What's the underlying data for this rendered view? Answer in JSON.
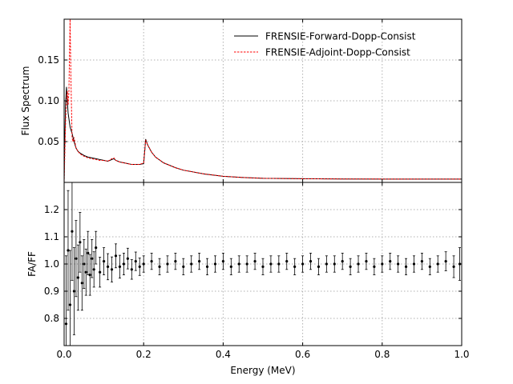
{
  "chart_data": [
    {
      "type": "line",
      "panel": "top",
      "xlabel": "",
      "ylabel": "Flux Spectrum",
      "xlim": [
        0.0,
        1.0
      ],
      "ylim": [
        0.0,
        0.2
      ],
      "yticks": [
        0.05,
        0.1,
        0.15
      ],
      "ytick_labels": [
        "0.05",
        "0.10",
        "0.15"
      ],
      "grid": true,
      "legend_position": "top-right",
      "series": [
        {
          "name": "FRENSIE-Forward-Dopp-Consist",
          "color": "#000000",
          "style": "solid",
          "x": [
            0.0,
            0.002,
            0.004,
            0.006,
            0.008,
            0.01,
            0.015,
            0.02,
            0.025,
            0.03,
            0.035,
            0.04,
            0.05,
            0.06,
            0.07,
            0.08,
            0.09,
            0.1,
            0.11,
            0.12,
            0.125,
            0.13,
            0.14,
            0.15,
            0.16,
            0.17,
            0.18,
            0.19,
            0.2,
            0.203,
            0.205,
            0.21,
            0.22,
            0.23,
            0.25,
            0.28,
            0.3,
            0.35,
            0.4,
            0.45,
            0.5,
            0.6,
            0.7,
            0.8,
            0.9,
            1.0
          ],
          "y": [
            0.0,
            0.06,
            0.1,
            0.117,
            0.1,
            0.085,
            0.068,
            0.06,
            0.05,
            0.042,
            0.038,
            0.036,
            0.033,
            0.031,
            0.03,
            0.029,
            0.028,
            0.027,
            0.026,
            0.028,
            0.029,
            0.027,
            0.025,
            0.024,
            0.023,
            0.022,
            0.022,
            0.022,
            0.023,
            0.04,
            0.053,
            0.046,
            0.037,
            0.031,
            0.024,
            0.018,
            0.015,
            0.0105,
            0.0075,
            0.006,
            0.005,
            0.0045,
            0.0042,
            0.0041,
            0.004,
            0.004
          ]
        },
        {
          "name": "FRENSIE-Adjoint-Dopp-Consist",
          "color": "#ff0000",
          "style": "dashed",
          "x": [
            0.0,
            0.002,
            0.004,
            0.006,
            0.008,
            0.01,
            0.012,
            0.015,
            0.017,
            0.02,
            0.022,
            0.025,
            0.03,
            0.035,
            0.04,
            0.05,
            0.06,
            0.07,
            0.08,
            0.09,
            0.1,
            0.11,
            0.12,
            0.125,
            0.13,
            0.14,
            0.15,
            0.16,
            0.17,
            0.18,
            0.19,
            0.2,
            0.203,
            0.205,
            0.21,
            0.22,
            0.23,
            0.25,
            0.28,
            0.3,
            0.35,
            0.4,
            0.45,
            0.5,
            0.6,
            0.7,
            0.8,
            0.9,
            1.0
          ],
          "y": [
            0.0,
            0.04,
            0.08,
            0.1,
            0.112,
            0.095,
            0.11,
            0.2,
            0.13,
            0.055,
            0.05,
            0.055,
            0.042,
            0.038,
            0.035,
            0.032,
            0.03,
            0.029,
            0.028,
            0.027,
            0.027,
            0.026,
            0.029,
            0.03,
            0.027,
            0.025,
            0.024,
            0.023,
            0.022,
            0.022,
            0.022,
            0.024,
            0.04,
            0.052,
            0.046,
            0.037,
            0.031,
            0.024,
            0.018,
            0.015,
            0.0105,
            0.0075,
            0.006,
            0.005,
            0.0045,
            0.0042,
            0.0041,
            0.004,
            0.004
          ]
        }
      ]
    },
    {
      "type": "scatter",
      "panel": "bottom",
      "xlabel": "Energy (MeV)",
      "ylabel": "FA/FF",
      "xlim": [
        0.0,
        1.0
      ],
      "ylim": [
        0.7,
        1.3
      ],
      "xticks": [
        0.0,
        0.2,
        0.4,
        0.6,
        0.8,
        1.0
      ],
      "xtick_labels": [
        "0.0",
        "0.2",
        "0.4",
        "0.6",
        "0.8",
        "1.0"
      ],
      "yticks": [
        0.8,
        0.9,
        1.0,
        1.1,
        1.2
      ],
      "ytick_labels": [
        "0.8",
        "0.9",
        "1.0",
        "1.1",
        "1.2"
      ],
      "grid": true,
      "series": [
        {
          "name": "",
          "color": "#000000",
          "marker": "dot-with-errorbars",
          "x": [
            0.005,
            0.01,
            0.015,
            0.02,
            0.025,
            0.03,
            0.035,
            0.04,
            0.045,
            0.05,
            0.055,
            0.06,
            0.065,
            0.07,
            0.075,
            0.08,
            0.09,
            0.1,
            0.11,
            0.12,
            0.13,
            0.14,
            0.15,
            0.16,
            0.17,
            0.18,
            0.19,
            0.2,
            0.22,
            0.24,
            0.26,
            0.28,
            0.3,
            0.32,
            0.34,
            0.36,
            0.38,
            0.4,
            0.42,
            0.44,
            0.46,
            0.48,
            0.5,
            0.52,
            0.54,
            0.56,
            0.58,
            0.6,
            0.62,
            0.64,
            0.66,
            0.68,
            0.7,
            0.72,
            0.74,
            0.76,
            0.78,
            0.8,
            0.82,
            0.84,
            0.86,
            0.88,
            0.9,
            0.92,
            0.94,
            0.96,
            0.98,
            0.995
          ],
          "y": [
            0.78,
            1.05,
            0.85,
            1.12,
            0.9,
            1.02,
            0.95,
            1.08,
            0.93,
            1.0,
            0.97,
            1.04,
            0.96,
            1.02,
            0.98,
            1.06,
            0.97,
            1.01,
            0.99,
            0.98,
            1.03,
            0.99,
            1.0,
            1.02,
            0.98,
            1.01,
            0.99,
            1.0,
            1.01,
            0.99,
            1.0,
            1.01,
            0.99,
            1.0,
            1.01,
            0.99,
            1.0,
            1.01,
            0.99,
            1.0,
            1.0,
            1.01,
            0.99,
            1.0,
            1.0,
            1.01,
            0.99,
            1.0,
            1.01,
            0.99,
            1.0,
            1.0,
            1.01,
            0.99,
            1.0,
            1.01,
            0.99,
            1.0,
            1.01,
            1.0,
            0.99,
            1.0,
            1.01,
            0.99,
            1.0,
            1.01,
            0.99,
            1.0
          ],
          "yerr": [
            0.25,
            0.22,
            0.2,
            0.18,
            0.16,
            0.14,
            0.12,
            0.11,
            0.1,
            0.09,
            0.085,
            0.08,
            0.075,
            0.07,
            0.065,
            0.06,
            0.055,
            0.05,
            0.048,
            0.046,
            0.044,
            0.042,
            0.04,
            0.038,
            0.036,
            0.034,
            0.032,
            0.03,
            0.03,
            0.03,
            0.03,
            0.03,
            0.03,
            0.03,
            0.03,
            0.03,
            0.03,
            0.03,
            0.03,
            0.03,
            0.03,
            0.03,
            0.03,
            0.03,
            0.03,
            0.03,
            0.03,
            0.03,
            0.03,
            0.03,
            0.03,
            0.03,
            0.03,
            0.03,
            0.03,
            0.03,
            0.03,
            0.03,
            0.03,
            0.03,
            0.03,
            0.03,
            0.03,
            0.03,
            0.03,
            0.035,
            0.04,
            0.06
          ]
        }
      ]
    }
  ]
}
